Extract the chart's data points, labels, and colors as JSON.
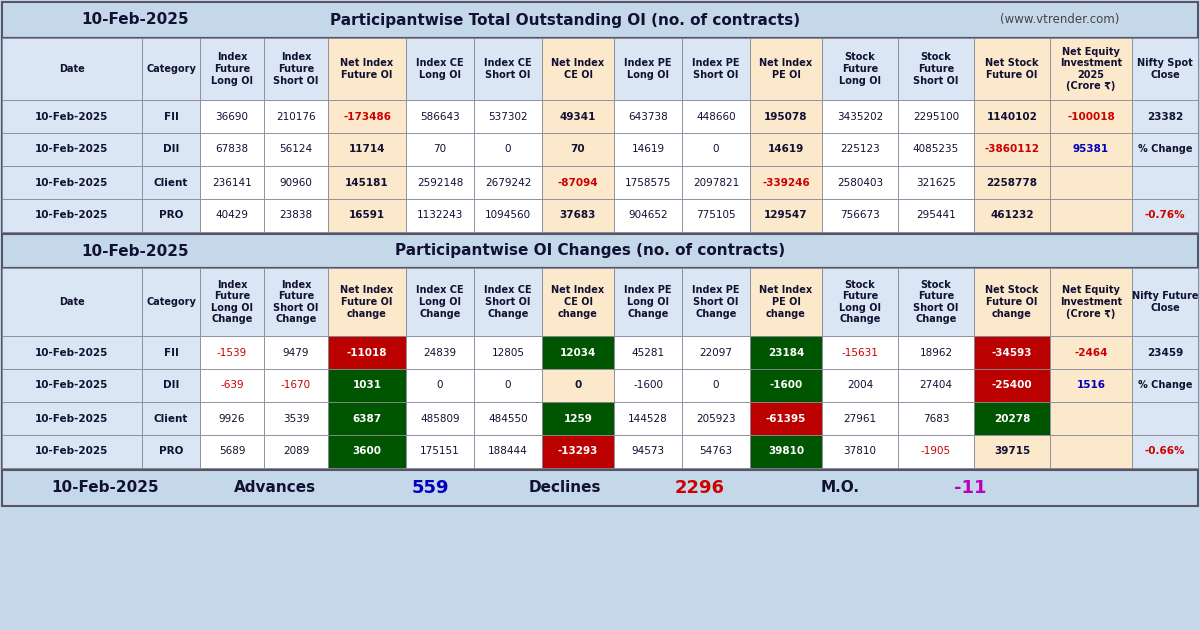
{
  "date": "10-Feb-2025",
  "website": "www.vtrender.com",
  "title1": "Participantwise Total Outstanding OI (no. of contracts)",
  "title2": "Participantwise OI Changes (no. of contracts)",
  "footer_label": "10-Feb-2025",
  "advances_label": "Advances",
  "advances_val": "559",
  "declines_label": "Declines",
  "declines_val": "2296",
  "mo_label": "M.O.",
  "mo_val": "-11",
  "bg_color": "#c5d8ea",
  "col_net_bg": "#fce9cc",
  "row_header_bg": "#dae6f3",
  "nifty_col_bg": "#dae6f3",
  "red_color": "#cc0000",
  "blue_color": "#0000bb",
  "purple_color": "#bb00bb",
  "table1_headers": [
    "Date",
    "Category",
    "Index\nFuture\nLong OI",
    "Index\nFuture\nShort OI",
    "Net Index\nFuture OI",
    "Index CE\nLong OI",
    "Index CE\nShort OI",
    "Net Index\nCE OI",
    "Index PE\nLong OI",
    "Index PE\nShort OI",
    "Net Index\nPE OI",
    "Stock\nFuture\nLong OI",
    "Stock\nFuture\nShort OI",
    "Net Stock\nFuture OI",
    "Net Equity\nInvestment\n2025\n(Crore ₹)",
    "Nifty Spot\nClose"
  ],
  "table1_data": [
    [
      "10-Feb-2025",
      "FII",
      "36690",
      "210176",
      "-173486",
      "586643",
      "537302",
      "49341",
      "643738",
      "448660",
      "195078",
      "3435202",
      "2295100",
      "1140102",
      "-100018",
      "23382"
    ],
    [
      "10-Feb-2025",
      "DII",
      "67838",
      "56124",
      "11714",
      "70",
      "0",
      "70",
      "14619",
      "0",
      "14619",
      "225123",
      "4085235",
      "-3860112",
      "95381",
      ""
    ],
    [
      "10-Feb-2025",
      "Client",
      "236141",
      "90960",
      "145181",
      "2592148",
      "2679242",
      "-87094",
      "1758575",
      "2097821",
      "-339246",
      "2580403",
      "321625",
      "2258778",
      "",
      ""
    ],
    [
      "10-Feb-2025",
      "PRO",
      "40429",
      "23838",
      "16591",
      "1132243",
      "1094560",
      "37683",
      "904652",
      "775105",
      "129547",
      "756673",
      "295441",
      "461232",
      "",
      ""
    ]
  ],
  "nifty_spot_pct_val": "-0.76%",
  "table2_headers": [
    "Date",
    "Category",
    "Index\nFuture\nLong OI\nChange",
    "Index\nFuture\nShort OI\nChange",
    "Net Index\nFuture OI\nchange",
    "Index CE\nLong OI\nChange",
    "Index CE\nShort OI\nChange",
    "Net Index\nCE OI\nchange",
    "Index PE\nLong OI\nChange",
    "Index PE\nShort OI\nChange",
    "Net Index\nPE OI\nchange",
    "Stock\nFuture\nLong OI\nChange",
    "Stock\nFuture\nShort OI\nChange",
    "Net Stock\nFuture OI\nchange",
    "Net Equity\nInvestment\n(Crore ₹)",
    "Nifty Future\nClose"
  ],
  "table2_data": [
    [
      "10-Feb-2025",
      "FII",
      "-1539",
      "9479",
      "-11018",
      "24839",
      "12805",
      "12034",
      "45281",
      "22097",
      "23184",
      "-15631",
      "18962",
      "-34593",
      "-2464",
      "23459"
    ],
    [
      "10-Feb-2025",
      "DII",
      "-639",
      "-1670",
      "1031",
      "0",
      "0",
      "0",
      "-1600",
      "0",
      "-1600",
      "2004",
      "27404",
      "-25400",
      "1516",
      ""
    ],
    [
      "10-Feb-2025",
      "Client",
      "9926",
      "3539",
      "6387",
      "485809",
      "484550",
      "1259",
      "144528",
      "205923",
      "-61395",
      "27961",
      "7683",
      "20278",
      "",
      ""
    ],
    [
      "10-Feb-2025",
      "PRO",
      "5689",
      "2089",
      "3600",
      "175151",
      "188444",
      "-13293",
      "94573",
      "54763",
      "39810",
      "37810",
      "-1905",
      "39715",
      "",
      ""
    ]
  ],
  "nifty_future_pct_val": "-0.66%",
  "cell_bg_t2": {
    "0,4": "#bb0000",
    "0,7": "#005500",
    "0,10": "#005500",
    "0,13": "#bb0000",
    "1,4": "#005500",
    "1,10": "#005500",
    "1,13": "#bb0000",
    "2,4": "#005500",
    "2,7": "#005500",
    "2,10": "#bb0000",
    "2,13": "#005500",
    "3,4": "#005500",
    "3,7": "#bb0000",
    "3,10": "#005500"
  },
  "red_text_t1": [
    "-173486",
    "-87094",
    "-339246",
    "-100018",
    "-3860112"
  ],
  "blue_text_t1": [
    "95381"
  ],
  "red_text_t2": [
    "-1539",
    "-639",
    "-1670",
    "-15631",
    "-2464",
    "-1905"
  ],
  "blue_text_t2": [
    "1516"
  ]
}
